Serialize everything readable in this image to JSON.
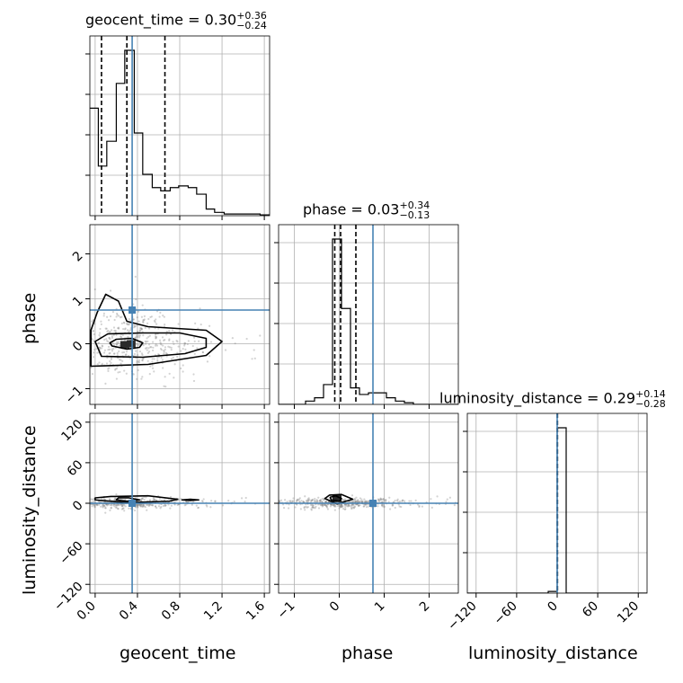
{
  "chart_data": {
    "type": "corner",
    "parameters": [
      "geocent_time",
      "phase",
      "luminosity_distance"
    ],
    "truths": [
      0.35,
      0.75,
      0.0
    ],
    "truth_color": "#4682b4",
    "ranges": {
      "geocent_time": [
        -0.05,
        1.65
      ],
      "phase": [
        -1.35,
        2.65
      ],
      "luminosity_distance": [
        -133,
        133
      ]
    },
    "ticks": {
      "geocent_time": {
        "values": [
          0.0,
          0.4,
          0.8,
          1.2,
          1.6
        ],
        "labels": [
          "0.0",
          "0.4",
          "0.8",
          "1.2",
          "1.6"
        ]
      },
      "phase": {
        "values": [
          -1,
          0,
          1,
          2
        ],
        "labels": [
          "−1",
          "0",
          "1",
          "2"
        ]
      },
      "luminosity_distance": {
        "values": [
          -120,
          -60,
          0,
          60,
          120
        ],
        "labels": [
          "−120",
          "−60",
          "0",
          "60",
          "120"
        ]
      }
    },
    "titles": [
      {
        "param": "geocent_time",
        "prefix": "geocent_time = 0.30",
        "plus": "+0.36",
        "minus": "−0.24"
      },
      {
        "param": "phase",
        "prefix": "phase = 0.03",
        "plus": "+0.34",
        "minus": "−0.13"
      },
      {
        "param": "luminosity_distance",
        "prefix": "luminosity_distance = 0.29",
        "plus": "+0.14",
        "minus": "−0.28"
      }
    ],
    "quantiles": {
      "geocent_time": [
        0.06,
        0.3,
        0.66
      ],
      "phase": [
        -0.1,
        0.03,
        0.37
      ],
      "luminosity_distance": [
        0.01,
        0.29,
        0.43
      ]
    },
    "histograms": {
      "geocent_time": {
        "edges": [
          -0.05,
          0.03,
          0.11,
          0.2,
          0.28,
          0.37,
          0.45,
          0.54,
          0.62,
          0.71,
          0.79,
          0.88,
          0.96,
          1.05,
          1.13,
          1.22,
          1.3,
          1.39,
          1.47,
          1.56,
          1.65
        ],
        "counts": [
          0.65,
          0.3,
          0.45,
          0.8,
          1.0,
          0.5,
          0.25,
          0.17,
          0.15,
          0.17,
          0.18,
          0.17,
          0.13,
          0.04,
          0.02,
          0.01,
          0.01,
          0.01,
          0.01,
          0.005
        ]
      },
      "phase": {
        "edges": [
          -1.35,
          -1.15,
          -0.95,
          -0.75,
          -0.55,
          -0.35,
          -0.15,
          0.05,
          0.25,
          0.45,
          0.65,
          0.85,
          1.05,
          1.25,
          1.45,
          1.65,
          1.85,
          2.05,
          2.25,
          2.45,
          2.65
        ],
        "counts": [
          0.0,
          0.0,
          0.0,
          0.02,
          0.04,
          0.12,
          1.0,
          0.58,
          0.1,
          0.06,
          0.07,
          0.07,
          0.04,
          0.02,
          0.01,
          0.0,
          0.0,
          0.0,
          0.0,
          0.0
        ]
      },
      "luminosity_distance": {
        "edges": [
          -133,
          -119.7,
          -106.4,
          -93.1,
          -79.8,
          -66.5,
          -53.2,
          -39.9,
          -26.6,
          -13.3,
          0,
          13.3,
          26.6,
          39.9,
          53.2,
          66.5,
          79.8,
          93.1,
          106.4,
          119.7,
          133
        ],
        "counts": [
          0,
          0,
          0,
          0,
          0,
          0,
          0,
          0,
          0,
          0.01,
          1.0,
          0,
          0,
          0,
          0,
          0,
          0,
          0,
          0,
          0
        ]
      }
    },
    "contours": {
      "geocent_time|phase": [
        {
          "level": 1,
          "points": [
            [
              0.16,
              -0.05
            ],
            [
              0.3,
              -0.12
            ],
            [
              0.42,
              -0.08
            ],
            [
              0.45,
              0.02
            ],
            [
              0.35,
              0.12
            ],
            [
              0.2,
              0.1
            ],
            [
              0.14,
              0.02
            ]
          ]
        },
        {
          "level": 2,
          "points": [
            [
              0.06,
              -0.28
            ],
            [
              0.45,
              -0.3
            ],
            [
              0.85,
              -0.22
            ],
            [
              1.05,
              -0.08
            ],
            [
              1.05,
              0.12
            ],
            [
              0.8,
              0.24
            ],
            [
              0.45,
              0.24
            ],
            [
              0.12,
              0.22
            ],
            [
              0.0,
              0.05
            ]
          ]
        },
        {
          "level": 3,
          "points": [
            [
              -0.04,
              -0.5
            ],
            [
              0.5,
              -0.46
            ],
            [
              1.05,
              -0.26
            ],
            [
              1.2,
              0.05
            ],
            [
              1.05,
              0.3
            ],
            [
              0.5,
              0.38
            ],
            [
              0.3,
              0.5
            ],
            [
              0.22,
              0.95
            ],
            [
              0.1,
              1.1
            ],
            [
              0.02,
              0.7
            ],
            [
              -0.04,
              0.3
            ]
          ]
        }
      ],
      "geocent_time|luminosity_distance": [
        {
          "level": 1,
          "points": [
            [
              0.2,
              5
            ],
            [
              0.3,
              3
            ],
            [
              0.42,
              5
            ],
            [
              0.32,
              8
            ],
            [
              0.22,
              8
            ]
          ]
        },
        {
          "level": 2,
          "points": [
            [
              0.0,
              5
            ],
            [
              0.3,
              1
            ],
            [
              0.7,
              3
            ],
            [
              0.78,
              6
            ],
            [
              0.5,
              11
            ],
            [
              0.15,
              10
            ],
            [
              0.0,
              8
            ]
          ]
        },
        {
          "level": 3,
          "points": [
            [
              0.82,
              5
            ],
            [
              0.9,
              4
            ],
            [
              0.98,
              5
            ],
            [
              0.9,
              6
            ]
          ]
        }
      ],
      "phase|luminosity_distance": [
        {
          "level": 1,
          "points": [
            [
              -0.18,
              5
            ],
            [
              0.0,
              3
            ],
            [
              0.05,
              7
            ],
            [
              -0.08,
              11
            ],
            [
              -0.2,
              9
            ]
          ]
        },
        {
          "level": 2,
          "points": [
            [
              -0.32,
              7
            ],
            [
              -0.05,
              -1
            ],
            [
              0.3,
              6
            ],
            [
              0.05,
              13
            ],
            [
              -0.22,
              12
            ]
          ]
        }
      ]
    },
    "dense_cells": [
      {
        "panel": "geocent_time|phase",
        "x": 0.28,
        "y": -0.02
      },
      {
        "panel": "geocent_time|phase",
        "x": 0.34,
        "y": 0.0
      },
      {
        "panel": "phase|luminosity_distance",
        "x": -0.05,
        "y": 7
      }
    ]
  }
}
